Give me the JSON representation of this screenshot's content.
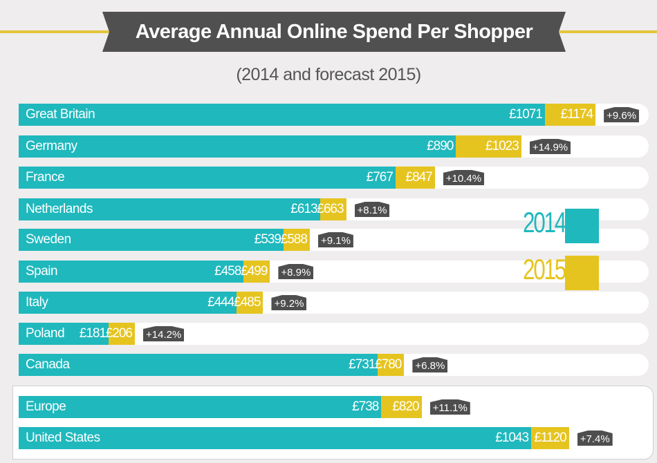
{
  "title": "Average Annual Online Spend Per Shopper",
  "subtitle": "(2014 and forecast 2015)",
  "colors": {
    "2014": "#1fb8bd",
    "2015": "#e6c41f",
    "banner": "#505050",
    "background": "#efedee"
  },
  "legend": {
    "series_2014": "2014",
    "series_2015": "2015",
    "placement": "right"
  },
  "chart_data": {
    "type": "bar",
    "orientation": "horizontal",
    "currency": "£",
    "categories": [
      "Great Britain",
      "Germany",
      "France",
      "Netherlands",
      "Sweden",
      "Spain",
      "Italy",
      "Poland",
      "Canada",
      "Europe",
      "United States"
    ],
    "series": [
      {
        "name": "2014",
        "values": [
          1071,
          890,
          767,
          613,
          539,
          458,
          444,
          181,
          731,
          738,
          1043
        ]
      },
      {
        "name": "2015",
        "values": [
          1174,
          1023,
          847,
          663,
          588,
          499,
          485,
          206,
          780,
          820,
          1120
        ]
      }
    ],
    "labels_2014": [
      "£1071",
      "£890",
      "£767",
      "£613",
      "£539",
      "£458",
      "£444",
      "£181",
      "£731",
      "£738",
      "£1043"
    ],
    "labels_2015": [
      "£1174",
      "£1023",
      "£847",
      "£663",
      "£588",
      "£499",
      "£485",
      "£206",
      "£780",
      "£820",
      "£1120"
    ],
    "growth": [
      "+9.6%",
      "+14.9%",
      "+10.4%",
      "+8.1%",
      "+9.1%",
      "+8.9%",
      "+9.2%",
      "+14.2%",
      "+6.8%",
      "+11.1%",
      "+7.4%"
    ],
    "grid": false
  }
}
